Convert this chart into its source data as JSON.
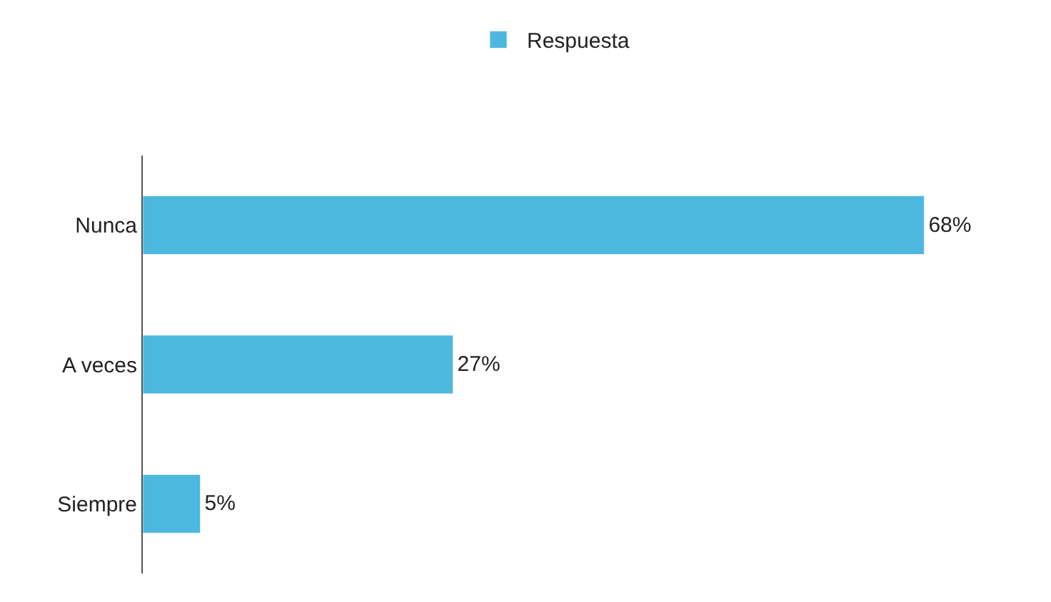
{
  "chart_data": {
    "type": "bar",
    "orientation": "horizontal",
    "categories": [
      "Nunca",
      "A veces",
      "Siempre"
    ],
    "series": [
      {
        "name": "Respuesta",
        "color": "#4cb8e0",
        "values": [
          68,
          27,
          5
        ],
        "value_labels": [
          "68%",
          "27%",
          "5%"
        ]
      }
    ],
    "legend": "top",
    "tick_labels": "y"
  }
}
